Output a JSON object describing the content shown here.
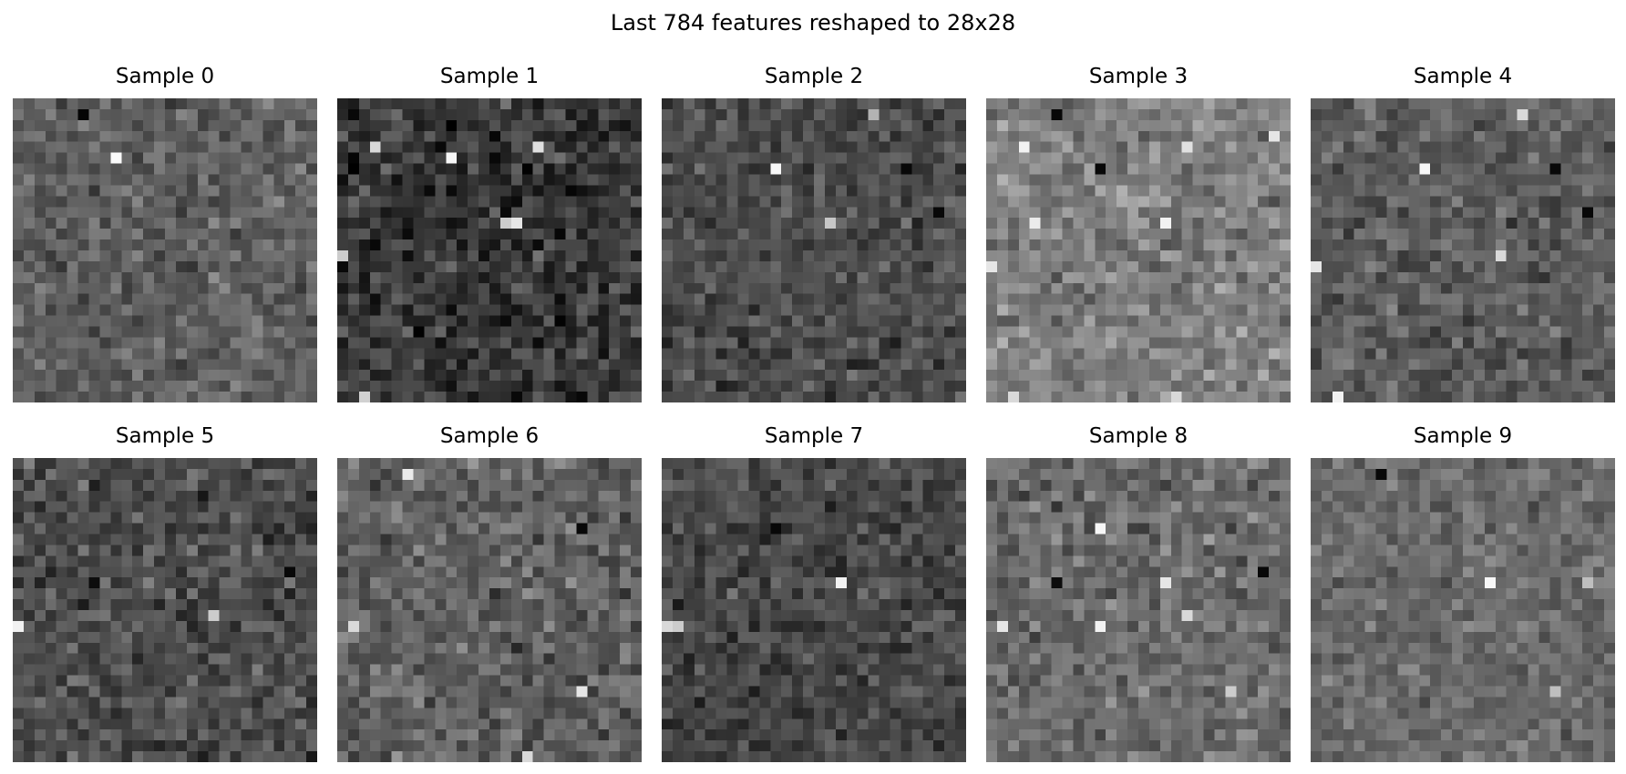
{
  "title": "Last 784 features reshaped to 28x28",
  "chart_data": {
    "type": "heatmap",
    "title": "Last 784 features reshaped to 28x28",
    "grid_shape": [
      28,
      28
    ],
    "colormap": "gray",
    "axes_visible": false,
    "panels": [
      {
        "title": "Sample 0",
        "base_level": 0.38,
        "spread": 0.07,
        "seed": 101,
        "hot_cells": [
          [
            1,
            6,
            0.02
          ],
          [
            5,
            9,
            0.98
          ]
        ]
      },
      {
        "title": "Sample 1",
        "base_level": 0.22,
        "spread": 0.09,
        "seed": 211,
        "hot_cells": [
          [
            4,
            3,
            0.85
          ],
          [
            5,
            10,
            0.97
          ],
          [
            4,
            18,
            0.88
          ],
          [
            11,
            16,
            0.9
          ],
          [
            11,
            15,
            0.8
          ],
          [
            14,
            0,
            0.8
          ],
          [
            27,
            2,
            0.82
          ],
          [
            27,
            16,
            0.03
          ],
          [
            27,
            22,
            0.03
          ]
        ]
      },
      {
        "title": "Sample 2",
        "base_level": 0.3,
        "spread": 0.07,
        "seed": 307,
        "hot_cells": [
          [
            1,
            19,
            0.7
          ],
          [
            6,
            10,
            0.97
          ],
          [
            6,
            22,
            0.03
          ],
          [
            10,
            25,
            0.03
          ],
          [
            11,
            15,
            0.78
          ]
        ]
      },
      {
        "title": "Sample 3",
        "base_level": 0.5,
        "spread": 0.08,
        "seed": 401,
        "hot_cells": [
          [
            1,
            6,
            0.03
          ],
          [
            4,
            3,
            0.95
          ],
          [
            6,
            10,
            0.03
          ],
          [
            4,
            18,
            0.88
          ],
          [
            3,
            26,
            0.9
          ],
          [
            11,
            16,
            0.95
          ],
          [
            11,
            4,
            0.92
          ],
          [
            15,
            0,
            0.9
          ],
          [
            27,
            2,
            0.85
          ],
          [
            27,
            17,
            0.85
          ]
        ]
      },
      {
        "title": "Sample 4",
        "base_level": 0.36,
        "spread": 0.07,
        "seed": 503,
        "hot_cells": [
          [
            1,
            19,
            0.85
          ],
          [
            6,
            10,
            0.97
          ],
          [
            6,
            22,
            0.03
          ],
          [
            10,
            25,
            0.03
          ],
          [
            14,
            17,
            0.85
          ],
          [
            15,
            0,
            0.9
          ],
          [
            27,
            2,
            0.95
          ]
        ]
      },
      {
        "title": "Sample 5",
        "base_level": 0.3,
        "spread": 0.08,
        "seed": 601,
        "hot_cells": [
          [
            11,
            7,
            0.05
          ],
          [
            10,
            25,
            0.03
          ],
          [
            15,
            0,
            0.95
          ],
          [
            14,
            18,
            0.8
          ]
        ]
      },
      {
        "title": "Sample 6",
        "base_level": 0.38,
        "spread": 0.08,
        "seed": 709,
        "hot_cells": [
          [
            1,
            6,
            0.92
          ],
          [
            6,
            22,
            0.03
          ],
          [
            15,
            1,
            0.85
          ],
          [
            21,
            22,
            0.9
          ],
          [
            27,
            17,
            0.85
          ]
        ]
      },
      {
        "title": "Sample 7",
        "base_level": 0.28,
        "spread": 0.07,
        "seed": 811,
        "hot_cells": [
          [
            6,
            10,
            0.03
          ],
          [
            11,
            16,
            0.95
          ],
          [
            15,
            0,
            0.85
          ],
          [
            15,
            1,
            0.8
          ]
        ]
      },
      {
        "title": "Sample 8",
        "base_level": 0.42,
        "spread": 0.08,
        "seed": 907,
        "hot_cells": [
          [
            6,
            10,
            0.97
          ],
          [
            11,
            6,
            0.05
          ],
          [
            10,
            25,
            0.03
          ],
          [
            11,
            16,
            0.9
          ],
          [
            15,
            1,
            0.9
          ],
          [
            15,
            10,
            0.95
          ],
          [
            14,
            18,
            0.85
          ],
          [
            21,
            22,
            0.8
          ]
        ]
      },
      {
        "title": "Sample 9",
        "base_level": 0.42,
        "spread": 0.06,
        "seed": 1013,
        "hot_cells": [
          [
            1,
            6,
            0.03
          ],
          [
            11,
            16,
            0.97
          ],
          [
            11,
            25,
            0.75
          ],
          [
            21,
            22,
            0.75
          ]
        ]
      }
    ]
  }
}
